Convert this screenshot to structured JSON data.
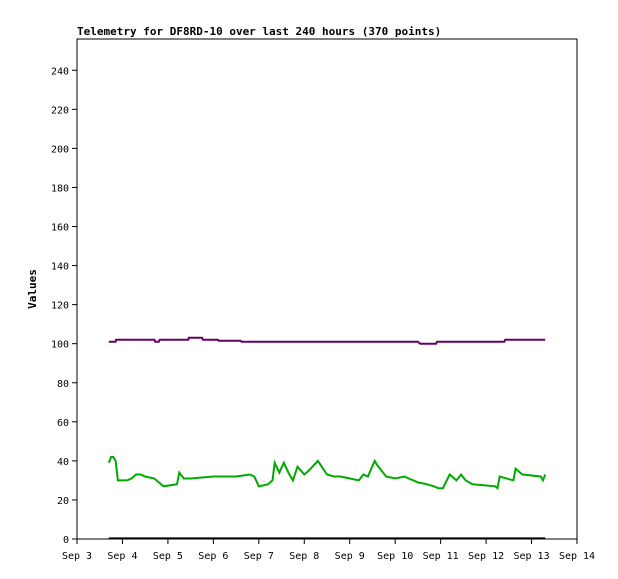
{
  "chart_data": {
    "type": "line",
    "title": "Telemetry for DF8RD-10 over last 240 hours (370 points)",
    "xlabel": "",
    "ylabel": "Values",
    "ylim": [
      0,
      256
    ],
    "yticks": [
      0,
      20,
      40,
      60,
      80,
      100,
      120,
      140,
      160,
      180,
      200,
      220,
      240
    ],
    "x_tick_labels": [
      "Sep 3",
      "Sep 4",
      "Sep 5",
      "Sep 6",
      "Sep 7",
      "Sep 8",
      "Sep 9",
      "Sep 10",
      "Sep 11",
      "Sep 12",
      "Sep 13",
      "Sep 14"
    ],
    "xlim": [
      3,
      14
    ],
    "grid": false,
    "series": [
      {
        "color": "#660066",
        "x": [
          3.7,
          3.85,
          3.86,
          4.7,
          4.72,
          4.8,
          4.82,
          5.45,
          5.46,
          5.75,
          5.77,
          6.1,
          6.12,
          6.6,
          6.62,
          10.5,
          10.55,
          10.9,
          10.92,
          12.4,
          12.42,
          13.3
        ],
        "y": [
          101,
          101,
          102,
          102,
          101,
          101,
          102,
          102,
          103,
          103,
          102,
          102,
          101.5,
          101.5,
          101,
          101,
          100,
          100,
          101,
          101,
          102,
          102
        ]
      },
      {
        "color": "#00aa00",
        "x": [
          3.7,
          3.75,
          3.8,
          3.85,
          3.9,
          4.1,
          4.2,
          4.3,
          4.4,
          4.5,
          4.7,
          4.8,
          4.9,
          5.2,
          5.25,
          5.35,
          5.5,
          6.0,
          6.5,
          6.8,
          6.9,
          7.0,
          7.2,
          7.3,
          7.35,
          7.45,
          7.55,
          7.65,
          7.75,
          7.85,
          8.0,
          8.1,
          8.3,
          8.5,
          8.65,
          8.8,
          9.2,
          9.3,
          9.4,
          9.55,
          9.6,
          9.8,
          10.0,
          10.2,
          10.5,
          10.7,
          10.85,
          10.95,
          11.05,
          11.2,
          11.35,
          11.45,
          11.55,
          11.7,
          12.2,
          12.25,
          12.3,
          12.6,
          12.65,
          12.8,
          13.2,
          13.25,
          13.3
        ],
        "y": [
          39,
          42,
          42,
          40,
          30,
          30,
          31,
          33,
          33,
          32,
          31,
          29,
          27,
          28,
          34,
          31,
          31,
          32,
          32,
          33,
          32,
          27,
          28,
          30,
          39,
          34,
          39,
          34,
          30,
          37,
          33,
          35,
          40,
          33,
          32,
          32,
          30,
          33,
          32,
          40,
          38,
          32,
          31,
          32,
          29,
          28,
          27,
          26,
          26,
          33,
          30,
          33,
          30,
          28,
          27,
          26,
          32,
          30,
          36,
          33,
          32,
          30,
          33
        ]
      },
      {
        "color": "#000000",
        "x": [
          3.7,
          13.3
        ],
        "y": [
          0.3,
          0.3
        ]
      }
    ]
  }
}
